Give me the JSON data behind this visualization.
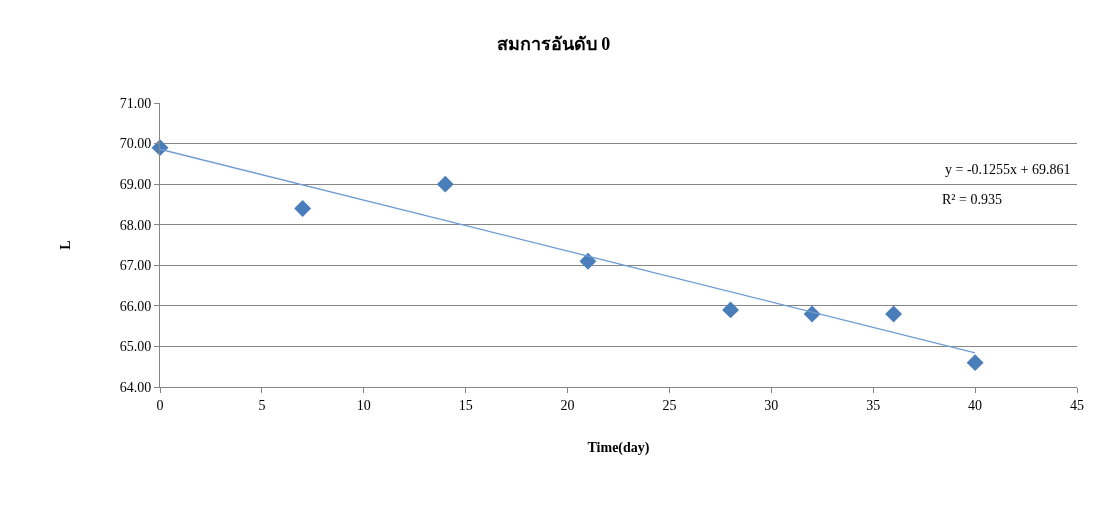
{
  "chart_data": {
    "type": "scatter",
    "title": "สมการอันดับ 0",
    "xlabel": "Time(day)",
    "ylabel": "L",
    "xlim": [
      0,
      45
    ],
    "xticks": [
      0,
      5,
      10,
      15,
      20,
      25,
      30,
      35,
      40,
      45
    ],
    "ylim": [
      64,
      71
    ],
    "yticks": [
      {
        "value": 64,
        "label": "64.00"
      },
      {
        "value": 65,
        "label": "65.00"
      },
      {
        "value": 66,
        "label": "66.00"
      },
      {
        "value": 67,
        "label": "67.00"
      },
      {
        "value": 68,
        "label": "68.00"
      },
      {
        "value": 69,
        "label": "69.00"
      },
      {
        "value": 70,
        "label": "70.00"
      },
      {
        "value": 71,
        "label": "71.00"
      }
    ],
    "grid": "y",
    "marker": "diamond",
    "series": [
      {
        "color": "#4a7ebb",
        "x": [
          0,
          7,
          14,
          21,
          28,
          32,
          36,
          40
        ],
        "values": [
          69.9,
          68.4,
          69.0,
          67.1,
          65.9,
          65.8,
          65.8,
          64.6
        ]
      },
      {
        "type": "line",
        "color": "#6f9bd1",
        "marker": "none",
        "line_style": "solid",
        "x": [
          0,
          40
        ],
        "values": [
          69.86,
          64.84
        ]
      }
    ],
    "annotations": [
      "y = -0.1255x + 69.861",
      "R² = 0.935"
    ]
  }
}
